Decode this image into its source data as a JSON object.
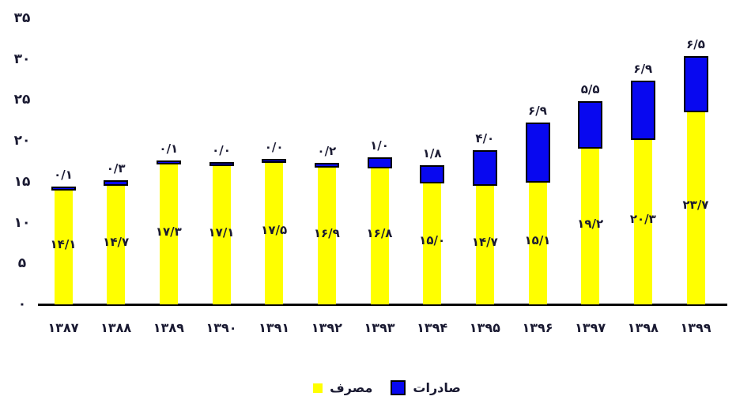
{
  "chart_data": {
    "type": "bar",
    "stacked": true,
    "direction": "rtl",
    "gridlines": false,
    "categories": [
      "۱۳۸۷",
      "۱۳۸۸",
      "۱۳۸۹",
      "۱۳۹۰",
      "۱۳۹۱",
      "۱۳۹۲",
      "۱۳۹۳",
      "۱۳۹۴",
      "۱۳۹۵",
      "۱۳۹۶",
      "۱۳۹۷",
      "۱۳۹۸",
      "۱۳۹۹"
    ],
    "series": [
      {
        "name": "مصرف",
        "color": "#FFFF00",
        "values": [
          14.1,
          14.7,
          17.3,
          17.1,
          17.5,
          16.9,
          16.8,
          15.0,
          14.7,
          15.1,
          19.2,
          20.3,
          23.7
        ],
        "labels": [
          "۱۴/۱",
          "۱۴/۷",
          "۱۷/۳",
          "۱۷/۱",
          "۱۷/۵",
          "۱۶/۹",
          "۱۶/۸",
          "۱۵/۰",
          "۱۴/۷",
          "۱۵/۱",
          "۱۹/۲",
          "۲۰/۳",
          "۲۳/۷"
        ],
        "label_position": "inside-center"
      },
      {
        "name": "صادرات",
        "color": "#0808F0",
        "border_color": "#000000",
        "values": [
          0.1,
          0.3,
          0.1,
          0.0,
          0.0,
          0.2,
          1.0,
          1.8,
          4.0,
          6.9,
          5.5,
          6.9,
          6.5
        ],
        "labels": [
          "۰/۱",
          "۰/۳",
          "۰/۱",
          "۰/۰",
          "۰/۰",
          "۰/۲",
          "۱/۰",
          "۱/۸",
          "۴/۰",
          "۶/۹",
          "۵/۵",
          "۶/۹",
          "۶/۵"
        ],
        "label_position": "above"
      }
    ],
    "y_axis": {
      "min": 0,
      "max": 35,
      "tick_step": 5,
      "tick_labels": [
        "۰",
        "۵",
        "۱۰",
        "۱۵",
        "۲۰",
        "۲۵",
        "۳۰",
        "۳۵"
      ]
    },
    "legend": {
      "position": "bottom",
      "items": [
        {
          "label": "مصرف",
          "color": "#FFFF00"
        },
        {
          "label": "صادرات",
          "color": "#0808F0"
        }
      ]
    },
    "colors": {
      "text": "#1a1a32",
      "axis_line": "#000000"
    }
  }
}
